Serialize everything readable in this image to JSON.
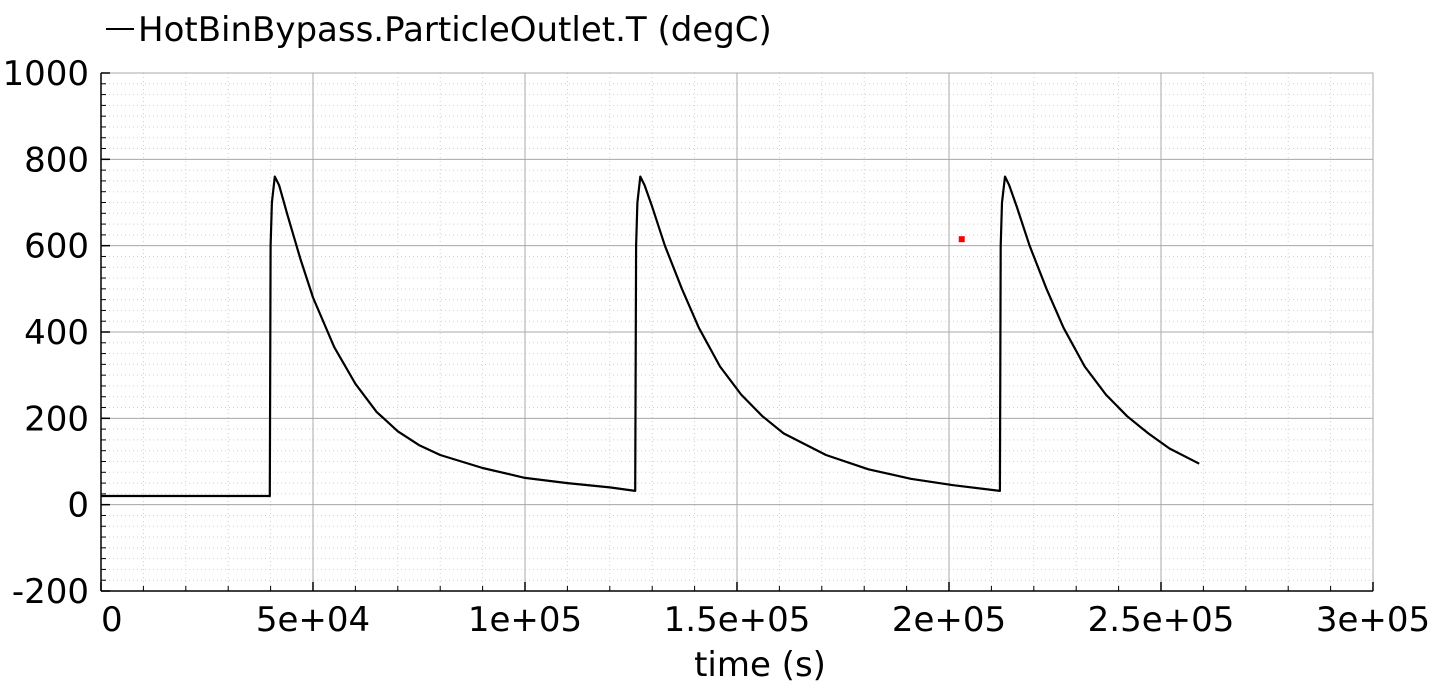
{
  "chart_data": {
    "type": "line",
    "xlabel": "time (s)",
    "ylabel": "",
    "xlim": [
      0,
      300000
    ],
    "ylim": [
      -200,
      1000
    ],
    "xticks": [
      0,
      50000,
      100000,
      150000,
      200000,
      250000,
      300000
    ],
    "xtick_labels": [
      "0",
      "5e+04",
      "1e+05",
      "1.5e+05",
      "2e+05",
      "2.5e+05",
      "3e+05"
    ],
    "yticks": [
      -200,
      0,
      200,
      400,
      600,
      800,
      1000
    ],
    "ytick_labels": [
      "-200",
      "0",
      "200",
      "400",
      "600",
      "800",
      "1000"
    ],
    "grid": true,
    "legend_position": "top-left",
    "series": [
      {
        "name": "HotBinBypass.ParticleOutlet.T (degC)",
        "color": "#000000",
        "x": [
          0,
          39800,
          40000,
          40300,
          41000,
          42000,
          44000,
          47000,
          50000,
          55000,
          60000,
          65000,
          70000,
          75000,
          80000,
          90000,
          100000,
          110000,
          120000,
          126000,
          126200,
          126500,
          127200,
          128200,
          130000,
          133000,
          137000,
          141000,
          146000,
          151000,
          156000,
          161000,
          171000,
          181000,
          191000,
          201000,
          212000,
          212200,
          212500,
          213200,
          214200,
          216000,
          219000,
          223000,
          227000,
          232000,
          237000,
          242000,
          247000,
          252000,
          259000
        ],
        "y": [
          20,
          20,
          600,
          700,
          760,
          740,
          670,
          570,
          480,
          365,
          280,
          215,
          170,
          138,
          115,
          85,
          62,
          50,
          40,
          32,
          600,
          700,
          760,
          740,
          690,
          600,
          500,
          410,
          320,
          255,
          205,
          165,
          115,
          82,
          60,
          45,
          32,
          600,
          700,
          760,
          740,
          690,
          600,
          500,
          410,
          320,
          255,
          205,
          165,
          130,
          95
        ]
      }
    ],
    "annotations": [
      {
        "type": "marker",
        "color": "#ff0000",
        "x": 203000,
        "y": 615
      }
    ]
  }
}
